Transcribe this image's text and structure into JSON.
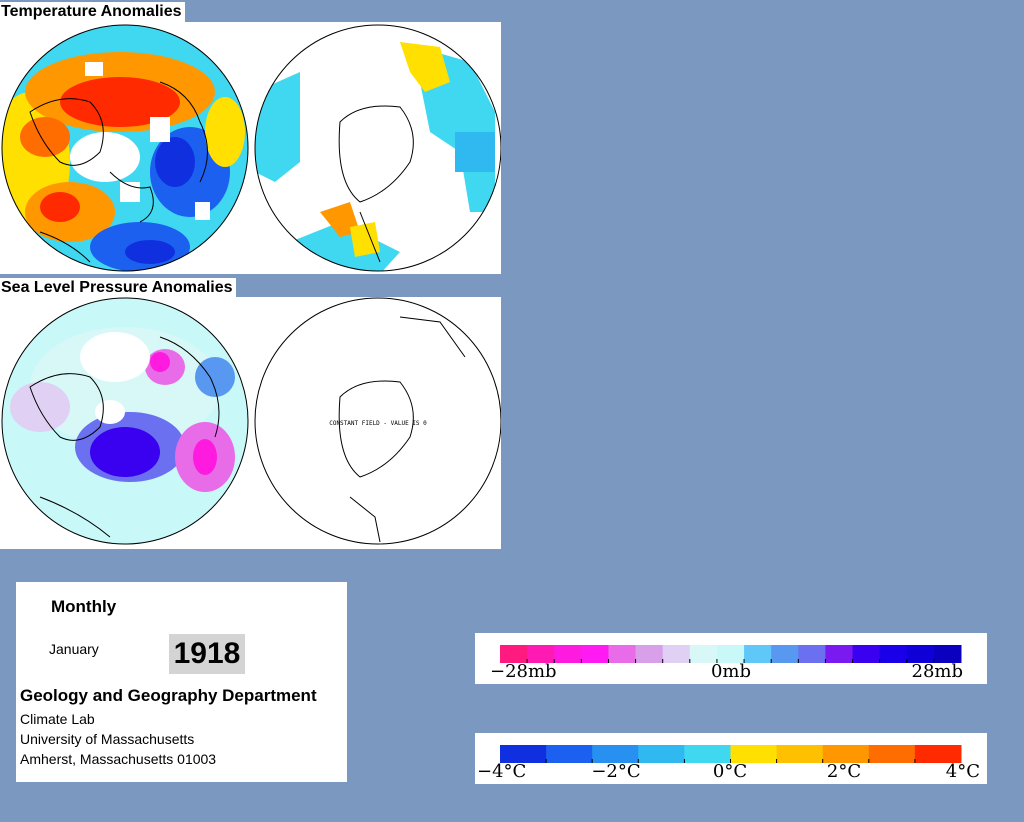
{
  "temperature": {
    "title": "Temperature Anomalies"
  },
  "pressure": {
    "title": "Sea Level Pressure Anomalies",
    "south_note": "CONSTANT FIELD - VALUE IS 0"
  },
  "info": {
    "period": "Monthly",
    "month": "January",
    "year": "1918",
    "department": "Geology and Geography Department",
    "lab": "Climate Lab",
    "university": "University of Massachusetts",
    "address": "Amherst, Massachusetts 01003"
  },
  "pressure_legend": {
    "labels": [
      "−28mb",
      "0mb",
      "28mb"
    ],
    "colors": [
      "#ff1a80",
      "#ff1ab4",
      "#ff1ae0",
      "#ff1af4",
      "#e86ce8",
      "#d8a0e8",
      "#e0d0f4",
      "#d8f8f8",
      "#c8f8f8",
      "#60c8f8",
      "#5898f0",
      "#6a70f0",
      "#7a1af0",
      "#3a00f0",
      "#1a00e8",
      "#1000d8",
      "#0c00c0"
    ]
  },
  "temperature_legend": {
    "labels": [
      "−4°C",
      "−2°C",
      "0°C",
      "2°C",
      "4°C"
    ],
    "colors": [
      "#1030e0",
      "#1c60f0",
      "#2890f0",
      "#30b8f0",
      "#40d8f0",
      "#ffe000",
      "#ffc000",
      "#ff9800",
      "#ff6c00",
      "#ff2a00"
    ]
  }
}
